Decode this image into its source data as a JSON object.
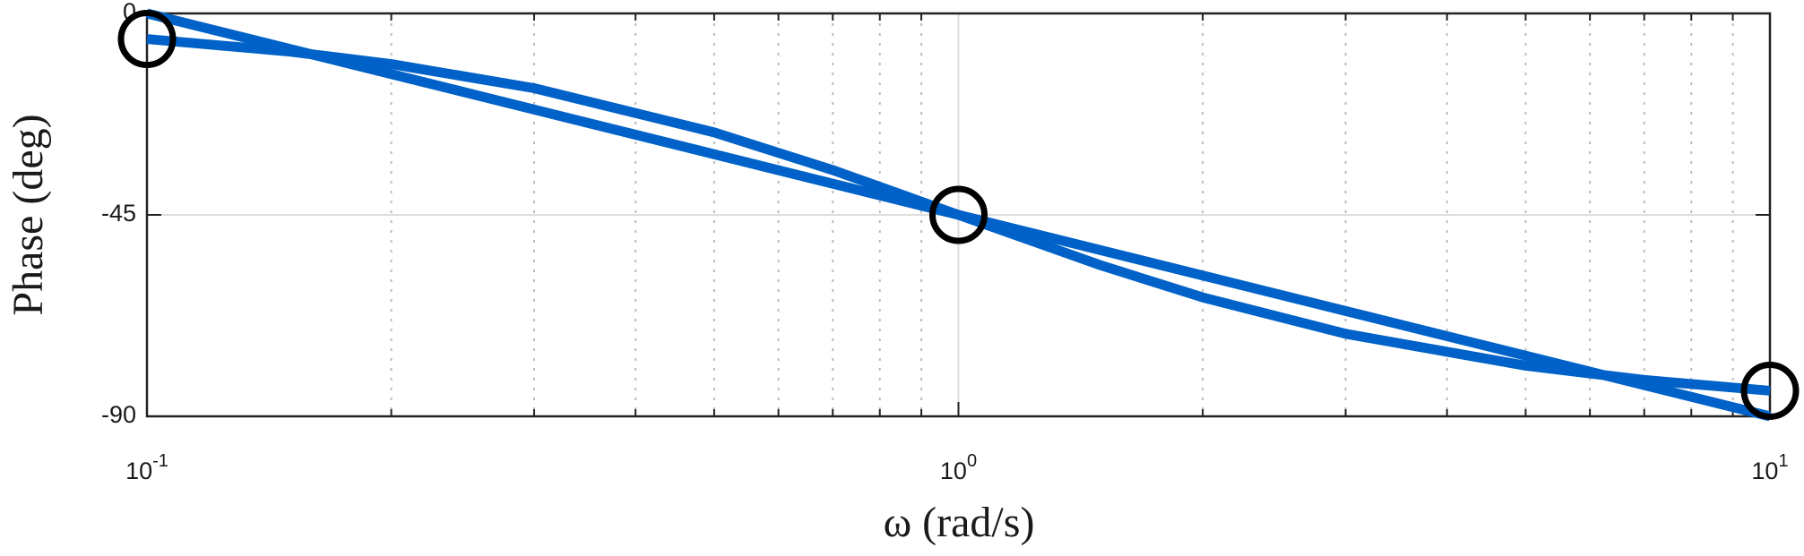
{
  "chart_data": {
    "type": "line",
    "xlabel": "ω (rad/s)",
    "ylabel": "Phase (deg)",
    "xscale": "log",
    "xlim": [
      0.1,
      10
    ],
    "ylim": [
      -90,
      0
    ],
    "xticks": [
      {
        "value": 0.1,
        "label": "10",
        "exponent": "-1"
      },
      {
        "value": 1,
        "label": "10",
        "exponent": "0"
      },
      {
        "value": 10,
        "label": "10",
        "exponent": "1"
      }
    ],
    "yticks": [
      -90,
      -45,
      0
    ],
    "grid": true,
    "minor_grid": true,
    "series": [
      {
        "color": "#0062c8",
        "style": "line",
        "x": [
          0.1,
          0.15,
          0.2,
          0.3,
          0.5,
          0.7,
          1,
          1.5,
          2,
          3,
          5,
          7,
          10
        ],
        "values": [
          -5.71,
          -8.53,
          -11.31,
          -16.7,
          -26.57,
          -34.99,
          -45,
          -56.31,
          -63.43,
          -71.57,
          -78.69,
          -81.87,
          -84.29
        ]
      },
      {
        "color": "#0062c8",
        "style": "line",
        "x": [
          0.1,
          10
        ],
        "values": [
          0,
          -90
        ]
      },
      {
        "color": "#000000",
        "style": "circle",
        "x": [
          0.1,
          1,
          10
        ],
        "values": [
          -5.71,
          -45,
          -84.29
        ]
      }
    ]
  }
}
